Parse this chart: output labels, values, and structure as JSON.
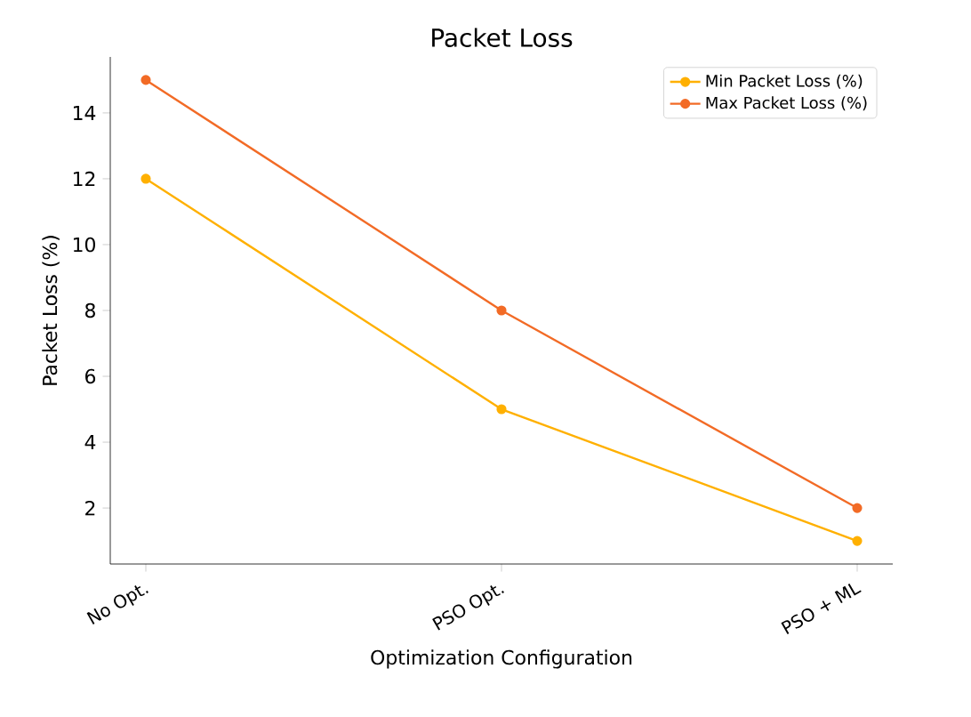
{
  "chart_data": {
    "type": "line",
    "title": "Packet Loss",
    "xlabel": "Optimization Configuration",
    "ylabel": "Packet Loss (%)",
    "categories": [
      "No Opt.",
      "PSO Opt.",
      "PSO + ML"
    ],
    "series": [
      {
        "name": "Min Packet Loss (%)",
        "color": "#ffb000",
        "values": [
          12,
          5,
          1
        ]
      },
      {
        "name": "Max Packet Loss (%)",
        "color": "#f26b26",
        "values": [
          15,
          8,
          2
        ]
      }
    ],
    "ylim": [
      0.3,
      15.7
    ],
    "yticks": [
      2,
      4,
      6,
      8,
      10,
      12,
      14
    ],
    "legend": "top right",
    "marker": "circle",
    "line_style": "solid",
    "grid": false
  }
}
